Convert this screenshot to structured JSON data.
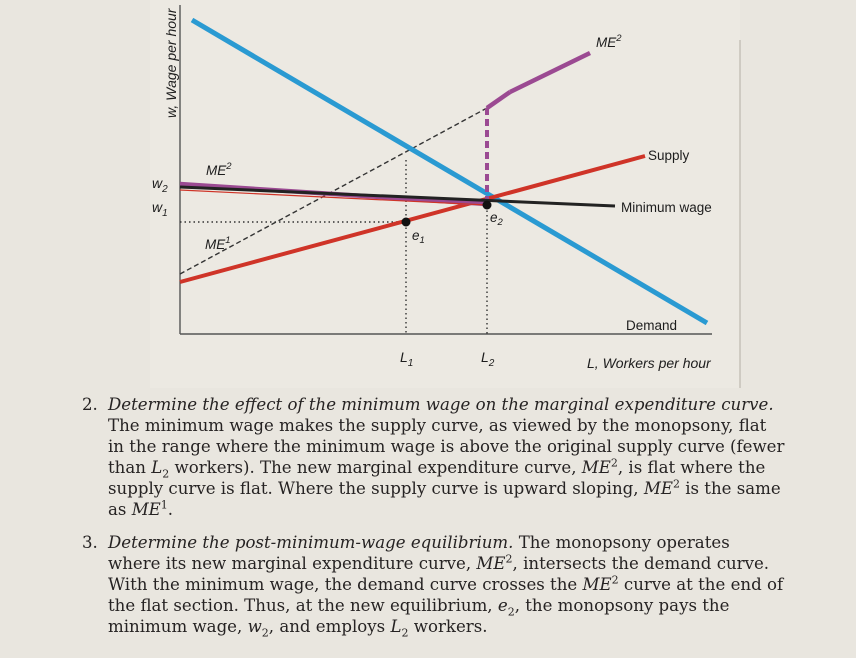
{
  "diagram": {
    "y_axis_label": "w, Wage per hour",
    "x_axis_label": "L, Workers per hour",
    "tick_w2": "w",
    "tick_w2_sub": "2",
    "tick_w1": "w",
    "tick_w1_sub": "1",
    "tick_L1": "L",
    "tick_L1_sub": "1",
    "tick_L2": "L",
    "tick_L2_sub": "2",
    "me2_top_label": "ME",
    "me2_top_sup": "2",
    "me2_left_label": "ME",
    "me2_left_sup": "2",
    "me1_label": "ME",
    "me1_sup": "1",
    "supply_label": "Supply",
    "minimum_wage_label": "Minimum wage",
    "demand_label": "Demand",
    "e1_label": "e",
    "e1_sub": "1",
    "e2_label": "e",
    "e2_sub": "2",
    "colors": {
      "demand": "#2a9ad2",
      "supply": "#cf3428",
      "me2": "#9b4a92",
      "minimum_wage": "#222222",
      "guide": "#333333"
    }
  },
  "items": [
    {
      "number": "2.",
      "heading": "Determine the effect of the minimum wage on the marginal expenditure curve.",
      "p1": " The minimum wage makes the supply curve, as viewed by the monopsony, flat in the range where the minimum wage is above the original supply curve (fewer than ",
      "L_a": "L",
      "L_a_sub": "2",
      "p2": " workers). The new marginal expenditure curve, ",
      "ME_a": "ME",
      "ME_a_sup": "2",
      "p3": ", is flat where the supply curve is flat. Where the supply curve is upward sloping, ",
      "ME_b": "ME",
      "ME_b_sup": "2",
      "p4": " is the same as ",
      "ME_c": "ME",
      "ME_c_sup": "1",
      "p5": "."
    },
    {
      "number": "3.",
      "heading": "Determine the post-minimum-wage equilibrium.",
      "p1": " The monopsony operates where its new marginal expenditure curve, ",
      "ME_a": "ME",
      "ME_a_sup": "2",
      "p2": ", intersects the demand curve. With the minimum wage, the demand curve crosses the ",
      "ME_b": "ME",
      "ME_b_sup": "2",
      "p3": " curve at the end of the flat section. Thus, at the new equilibrium, ",
      "e": "e",
      "e_sub": "2",
      "p4": ", the monopsony pays the minimum wage, ",
      "w": "w",
      "w_sub": "2",
      "p5": ", and employs ",
      "L": "L",
      "L_sub": "2",
      "p6": " workers."
    }
  ]
}
